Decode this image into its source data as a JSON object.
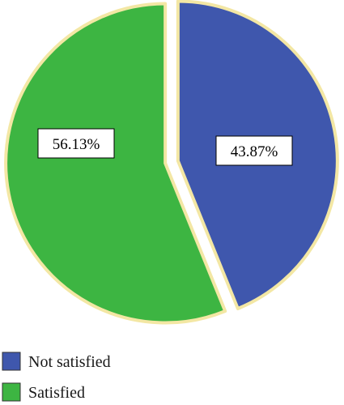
{
  "chart_data": {
    "type": "pie",
    "title": "",
    "categories": [
      "Not satisfied",
      "Satisfied"
    ],
    "values": [
      43.87,
      56.13
    ],
    "value_labels": [
      "43.87%",
      "56.13%"
    ],
    "colors": [
      "#3f57ad",
      "#3db542"
    ],
    "outline_color": "#f3e7a4",
    "legend": {
      "position": "bottom-left",
      "entries": [
        "Not satisfied",
        "Satisfied"
      ]
    },
    "start_angle_deg": 0,
    "direction": "clockwise",
    "exploded": true
  }
}
